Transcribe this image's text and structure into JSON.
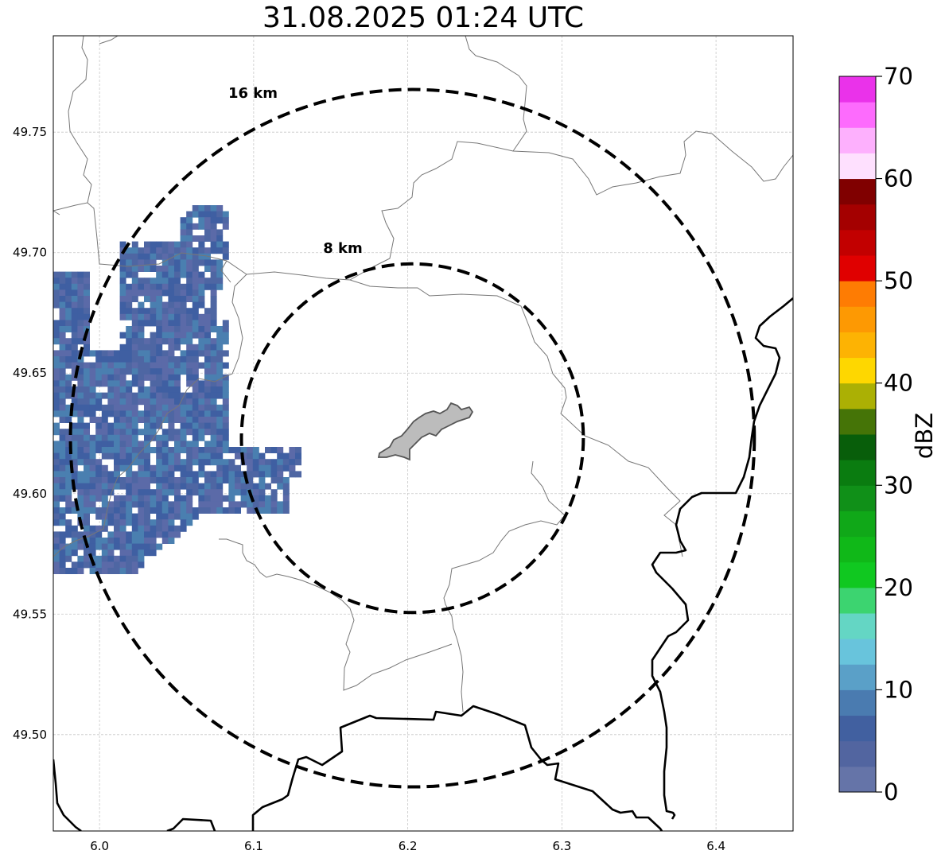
{
  "title": "31.08.2025 01:24 UTC",
  "map": {
    "lon_range": [
      5.97,
      6.45
    ],
    "lat_range": [
      49.46,
      49.79
    ],
    "x_ticks": [
      6.0,
      6.1,
      6.2,
      6.3,
      6.4
    ],
    "x_tick_labels": [
      "6.0",
      "6.1",
      "6.2",
      "6.3",
      "6.4"
    ],
    "y_ticks": [
      49.5,
      49.55,
      49.6,
      49.65,
      49.7,
      49.75
    ],
    "y_tick_labels": [
      "49.50",
      "49.55",
      "49.60",
      "49.65",
      "49.70",
      "49.75"
    ],
    "grid": true,
    "range_rings": [
      {
        "label": "8 km",
        "radius_km": 8
      },
      {
        "label": "16 km",
        "radius_km": 16
      }
    ],
    "center": {
      "lon": 6.203,
      "lat": 49.623
    },
    "echo_colors": [
      "#5b6aa8",
      "#4e66a3",
      "#3f5fa2",
      "#4a7fb0"
    ]
  },
  "colorbar": {
    "label": "dBZ",
    "min": 0,
    "max": 70,
    "tick_values": [
      0,
      10,
      20,
      30,
      40,
      50,
      60,
      70
    ],
    "tick_labels": [
      "0",
      "10",
      "20",
      "30",
      "40",
      "50",
      "60",
      "70"
    ],
    "colors": [
      "#6574a8",
      "#5265a0",
      "#4160a0",
      "#4a7bb0",
      "#5aa0c8",
      "#68c4dc",
      "#64d6c4",
      "#3cd470",
      "#10c820",
      "#10b818",
      "#10a818",
      "#109018",
      "#0a7c10",
      "#085e0a",
      "#457407",
      "#abb004",
      "#fed700",
      "#fdb303",
      "#fd9903",
      "#fe7c03",
      "#e00000",
      "#c20000",
      "#a40000",
      "#800000",
      "#fee0fe",
      "#fdb0fd",
      "#fd6bfd",
      "#ea32ea"
    ]
  }
}
